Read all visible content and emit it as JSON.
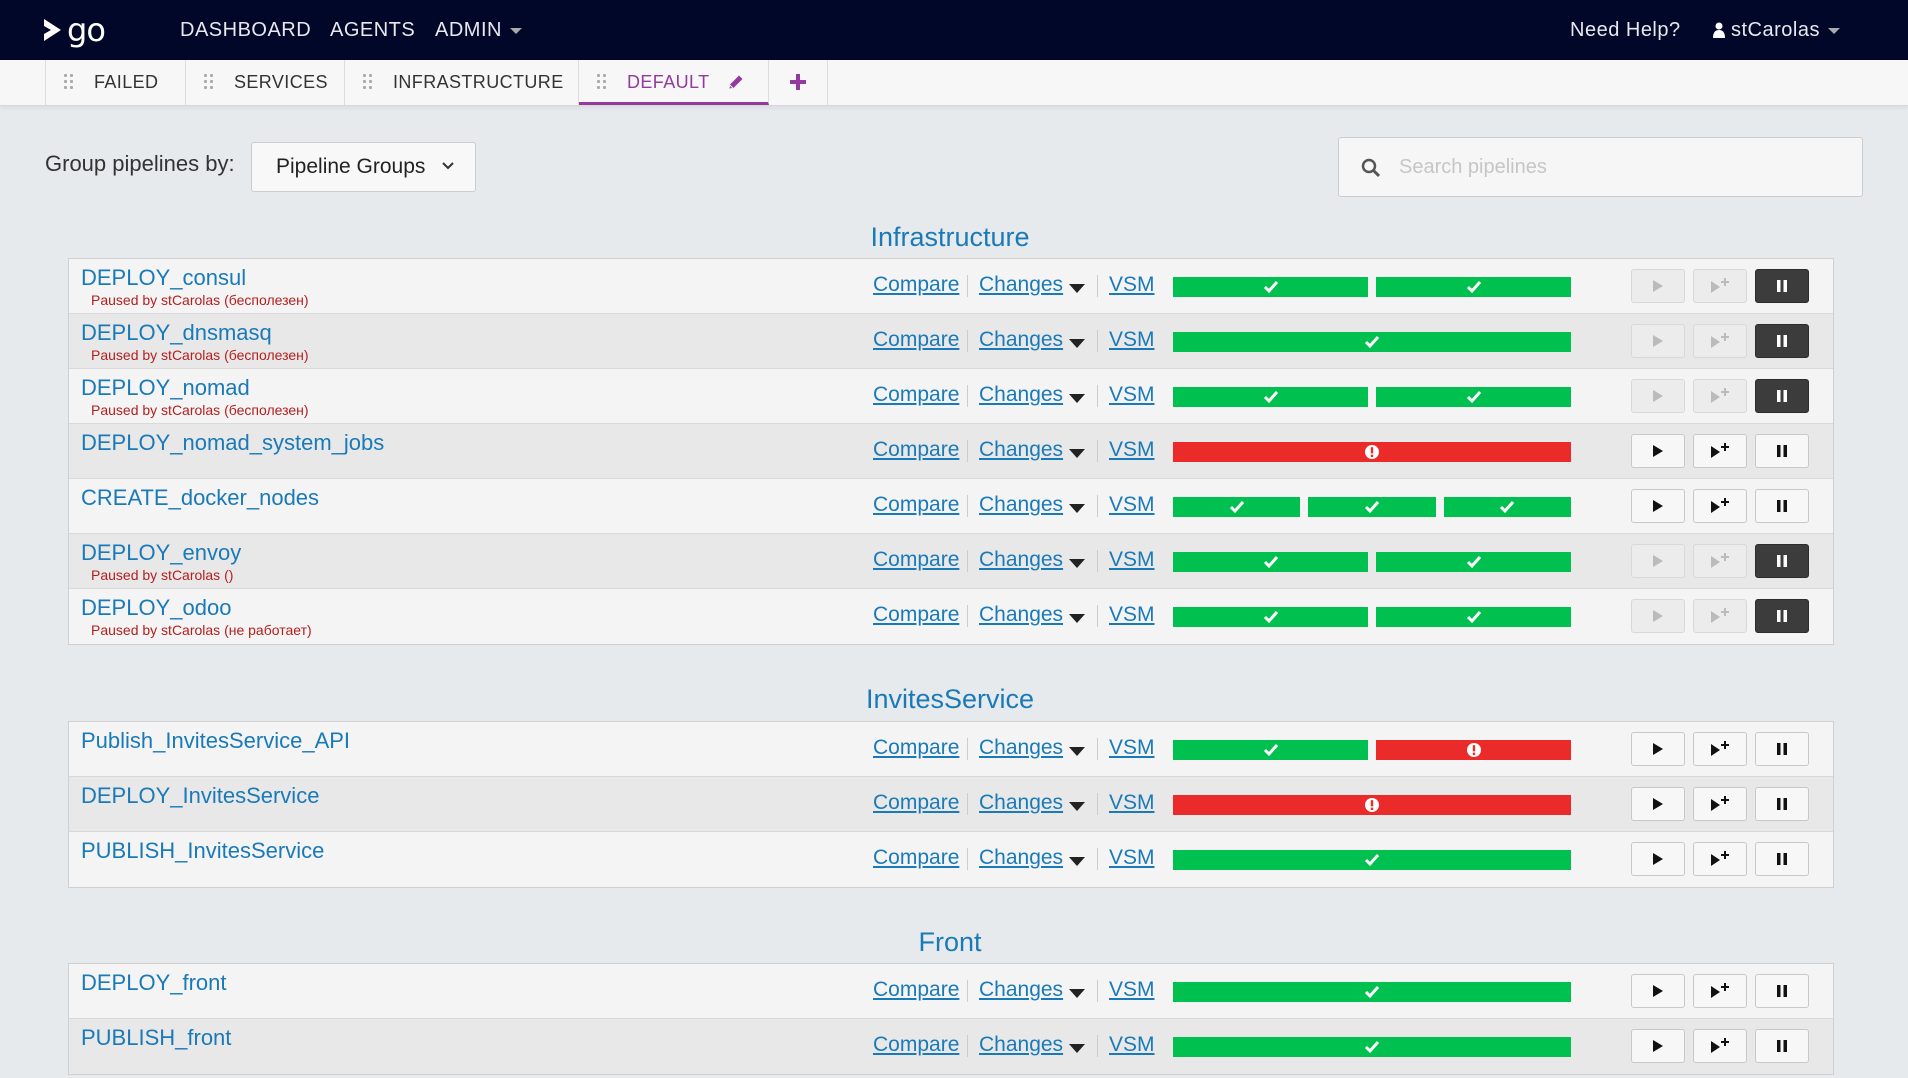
{
  "nav": {
    "logo_text": "go",
    "dashboard": "DASHBOARD",
    "agents": "AGENTS",
    "admin": "ADMIN",
    "help": "Need Help?",
    "user": "stCarolas"
  },
  "tabs": [
    {
      "label": "FAILED"
    },
    {
      "label": "SERVICES"
    },
    {
      "label": "INFRASTRUCTURE"
    },
    {
      "label": "DEFAULT"
    }
  ],
  "grouping": {
    "label": "Group pipelines by:",
    "selected": "Pipeline Groups",
    "search_placeholder": "Search pipelines"
  },
  "links": {
    "compare": "Compare",
    "changes": "Changes",
    "vsm": "VSM"
  },
  "colors": {
    "pass": "#00c04f",
    "fail": "#eb2a2a",
    "link": "#1a7ab8",
    "accent": "#943a9e",
    "nav": "#000728"
  },
  "groups": [
    {
      "name": "Infrastructure",
      "pipelines": [
        {
          "name": "DEPLOY_consul",
          "paused": "Paused by stCarolas (бесполезен)",
          "stages": [
            "pass",
            "pass"
          ]
        },
        {
          "name": "DEPLOY_dnsmasq",
          "paused": "Paused by stCarolas (бесполезен)",
          "stages": [
            "pass"
          ]
        },
        {
          "name": "DEPLOY_nomad",
          "paused": "Paused by stCarolas (бесполезен)",
          "stages": [
            "pass",
            "pass"
          ]
        },
        {
          "name": "DEPLOY_nomad_system_jobs",
          "paused": "",
          "stages": [
            "fail"
          ]
        },
        {
          "name": "CREATE_docker_nodes",
          "paused": "",
          "stages": [
            "pass",
            "pass",
            "pass"
          ]
        },
        {
          "name": "DEPLOY_envoy",
          "paused": "Paused by stCarolas ()",
          "stages": [
            "pass",
            "pass"
          ]
        },
        {
          "name": "DEPLOY_odoo",
          "paused": "Paused by stCarolas (не работает)",
          "stages": [
            "pass",
            "pass"
          ]
        }
      ]
    },
    {
      "name": "InvitesService",
      "pipelines": [
        {
          "name": "Publish_InvitesService_API",
          "paused": "",
          "stages": [
            "pass",
            "fail"
          ]
        },
        {
          "name": "DEPLOY_InvitesService",
          "paused": "",
          "stages": [
            "fail"
          ]
        },
        {
          "name": "PUBLISH_InvitesService",
          "paused": "",
          "stages": [
            "pass"
          ]
        }
      ]
    },
    {
      "name": "Front",
      "pipelines": [
        {
          "name": "DEPLOY_front",
          "paused": "",
          "stages": [
            "pass"
          ]
        },
        {
          "name": "PUBLISH_front",
          "paused": "",
          "stages": [
            "pass"
          ]
        }
      ]
    }
  ]
}
